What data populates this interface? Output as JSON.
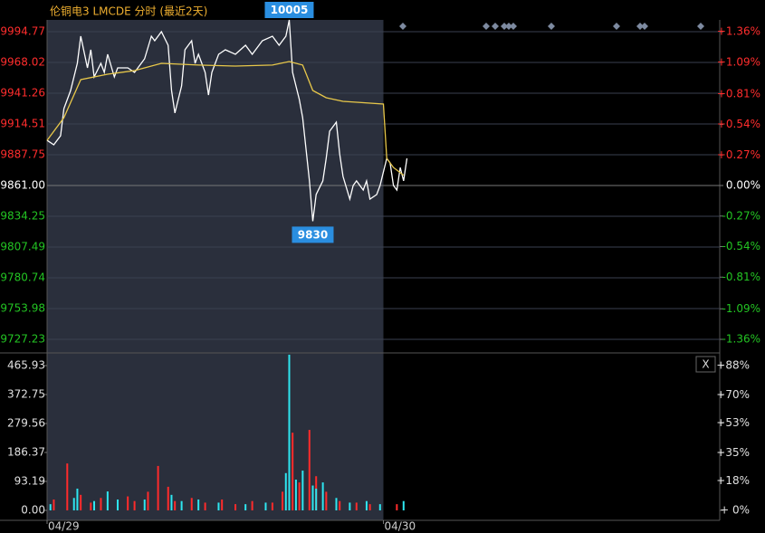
{
  "chart_data": [
    {
      "type": "line",
      "title": "伦铜电3 LMCDE 分时 (最近2天)",
      "xlim": [
        0,
        200
      ],
      "ylim": [
        9715.43,
        10005.0
      ],
      "yticks": [
        9994.77,
        9968.02,
        9941.26,
        9914.51,
        9887.75,
        {
          "value": 9861,
          "label": "9861.00"
        },
        9834.25,
        9807.49,
        9780.74,
        9753.98,
        9727.23
      ],
      "y2lim": [
        -1.48,
        1.464
      ],
      "y2ticks": [
        {
          "value": 1.36,
          "label": "+1.36%"
        },
        {
          "value": 1.09,
          "label": "+1.09%"
        },
        {
          "value": 0.81,
          "label": "+0.81%"
        },
        {
          "value": 0.54,
          "label": "+0.54%"
        },
        {
          "value": 0.27,
          "label": "+0.27%"
        },
        {
          "value": 0,
          "label": "0.00%"
        },
        {
          "value": -0.27,
          "label": "-0.27%"
        },
        {
          "value": -0.54,
          "label": "-0.54%"
        },
        {
          "value": -0.81,
          "label": "-0.81%"
        },
        {
          "value": -1.09,
          "label": "-1.09%"
        },
        {
          "value": -1.36,
          "label": "-1.36%"
        }
      ],
      "series": [
        {
          "color": "#ffffff",
          "x": [
            0,
            2,
            4,
            5,
            7,
            9,
            10,
            12,
            13,
            14,
            16,
            17,
            18,
            20,
            21,
            24,
            26,
            29,
            31,
            32,
            34,
            36,
            37,
            38,
            40,
            41,
            43,
            44,
            45,
            47,
            48,
            49,
            51,
            53,
            56,
            59,
            61,
            64,
            67,
            69,
            71,
            72,
            73,
            75,
            76,
            78,
            79,
            80,
            82,
            83,
            84,
            86,
            87,
            88,
            90,
            91,
            92,
            94,
            95,
            96,
            98,
            99,
            101,
            102,
            103,
            104,
            105,
            106,
            107
          ],
          "values": [
            9900.3,
            9896.4,
            9904.3,
            9927.9,
            9943.6,
            9967.2,
            9990.8,
            9963.3,
            9979.0,
            9955.4,
            9967.2,
            9959.4,
            9975.1,
            9955.4,
            9963.3,
            9963.3,
            9959.4,
            9971.2,
            9990.8,
            9986.9,
            9994.8,
            9983.0,
            9943.6,
            9924.0,
            9947.6,
            9979.0,
            9986.9,
            9967.2,
            9975.1,
            9959.4,
            9939.7,
            9959.4,
            9975.1,
            9979.0,
            9975.1,
            9983.0,
            9975.1,
            9986.9,
            9990.8,
            9983.0,
            9990.8,
            10005,
            9959.4,
            9935.8,
            9920.0,
            9865.0,
            9830,
            9853.1,
            9865.0,
            9884.6,
            9908.2,
            9916.1,
            9888.5,
            9868.9,
            9849.2,
            9861.0,
            9865.0,
            9857.1,
            9865.0,
            9849.2,
            9853.1,
            9861.0,
            9884.6,
            9880.7,
            9861.0,
            9857.1,
            9876.7,
            9865.0,
            9884.6
          ]
        },
        {
          "color": "#e8c84a",
          "x": [
            0,
            5,
            10,
            18,
            26,
            34,
            45,
            56,
            67,
            72,
            76,
            79,
            83,
            88,
            100,
            101,
            103,
            106
          ],
          "values": [
            9900.3,
            9920.0,
            9953.1,
            9957.8,
            9960.9,
            9967.2,
            9965.7,
            9964.9,
            9965.7,
            9968.8,
            9965.7,
            9943.6,
            9937.3,
            9934.2,
            9931.8,
            9884.6,
            9876.7,
            9870.0
          ]
        }
      ],
      "annotations": [
        {
          "value": 10005,
          "x": 72
        },
        {
          "value": 9830,
          "x": 79
        }
      ]
    },
    {
      "type": "bar",
      "xlim": [
        0,
        200
      ],
      "xticks": [
        {
          "value": 0,
          "label": "04/29"
        },
        {
          "value": 100,
          "label": "04/30"
        }
      ],
      "ylim": [
        -32.0,
        506.7
      ],
      "yticks": [
        465.93,
        372.75,
        279.56,
        186.37,
        93.19,
        {
          "value": 0,
          "label": "0.00"
        }
      ],
      "y2lim": [
        -6.05,
        95.7
      ],
      "y2ticks": [
        {
          "value": 88,
          "label": "+88%"
        },
        {
          "value": 70,
          "label": "+70%"
        },
        {
          "value": 53,
          "label": "+53%"
        },
        {
          "value": 35,
          "label": "+35%"
        },
        {
          "value": 18,
          "label": "+18%"
        },
        {
          "value": 0,
          "label": "+ 0%"
        }
      ],
      "series": [
        {
          "color": "#ff2b2b",
          "x": [
            2,
            6,
            10,
            13,
            16,
            24,
            26,
            30,
            33,
            36,
            38,
            43,
            47,
            52,
            56,
            61,
            67,
            70,
            73,
            75,
            78,
            80,
            83,
            87,
            92,
            96,
            104
          ],
          "values": [
            35,
            151,
            50,
            25,
            40,
            45,
            30,
            60,
            143,
            76,
            30,
            40,
            25,
            35,
            20,
            30,
            25,
            60,
            250,
            90,
            259,
            110,
            60,
            30,
            25,
            20,
            20
          ]
        },
        {
          "color": "#2ee6f0",
          "x": [
            1,
            8,
            9,
            14,
            18,
            21,
            29,
            37,
            40,
            45,
            51,
            59,
            65,
            71,
            72,
            74,
            76,
            79,
            80,
            82,
            86,
            90,
            95,
            99,
            106
          ],
          "values": [
            20,
            40,
            70,
            30,
            61,
            35,
            35,
            50,
            30,
            35,
            25,
            20,
            25,
            120,
            501,
            99,
            128,
            80,
            70,
            90,
            40,
            25,
            30,
            20,
            30
          ]
        }
      ]
    }
  ]
}
